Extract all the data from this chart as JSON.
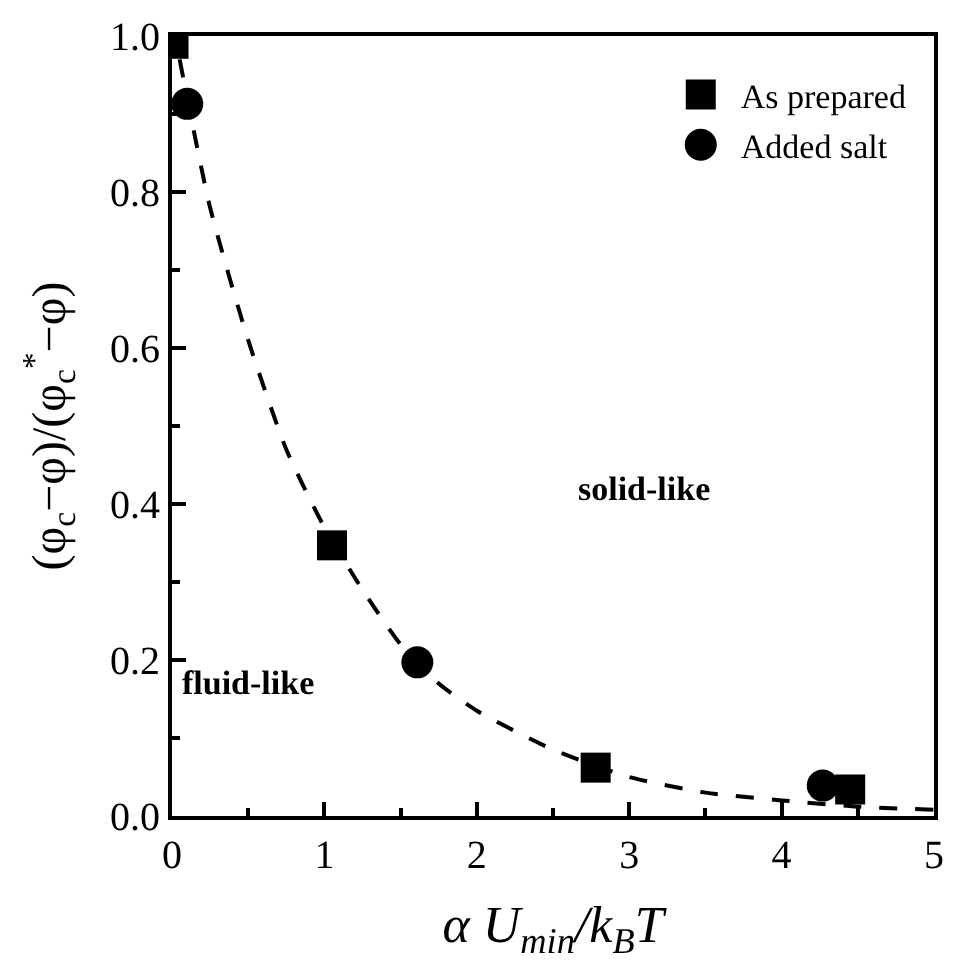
{
  "chart_data": {
    "type": "scatter",
    "xlabel": "α U$_{min}$/k$_{B}$T",
    "ylabel": "(φ$_{c}$−φ)/(φ$_{c}$$^{*}$−φ)",
    "xlim": [
      0,
      5
    ],
    "xticks": [
      0,
      1,
      2,
      3,
      4,
      5
    ],
    "ylim": [
      0,
      1.0
    ],
    "yticks": [
      {
        "value": 0,
        "label": "0.0"
      },
      0.2,
      0.4,
      0.6,
      0.8,
      {
        "value": 1,
        "label": "1.0"
      }
    ],
    "legend": "top right",
    "annotations": [
      "solid-like",
      "fluid-like"
    ],
    "series": [
      {
        "type": "line",
        "line_style": "dashed",
        "marker": "none",
        "color": "#000000",
        "x": [
          0.05,
          0.25,
          0.5,
          0.75,
          1,
          1.25,
          1.5,
          1.75,
          2,
          2.5,
          3,
          3.5,
          4,
          4.5,
          5
        ],
        "values": [
          0.97,
          0.78,
          0.61,
          0.47,
          0.37,
          0.29,
          0.22,
          0.17,
          0.135,
          0.085,
          0.05,
          0.03,
          0.02,
          0.012,
          0.008
        ]
      },
      {
        "name": "As prepared",
        "marker": "square",
        "color": "#000000",
        "x": [
          0.01,
          1.05,
          2.78,
          4.45
        ],
        "values": [
          0.99,
          0.347,
          0.062,
          0.034
        ]
      },
      {
        "name": "Added salt",
        "marker": "circle",
        "color": "#000000",
        "x": [
          0.1,
          1.61,
          4.27
        ],
        "values": [
          0.913,
          0.197,
          0.039
        ]
      }
    ]
  }
}
